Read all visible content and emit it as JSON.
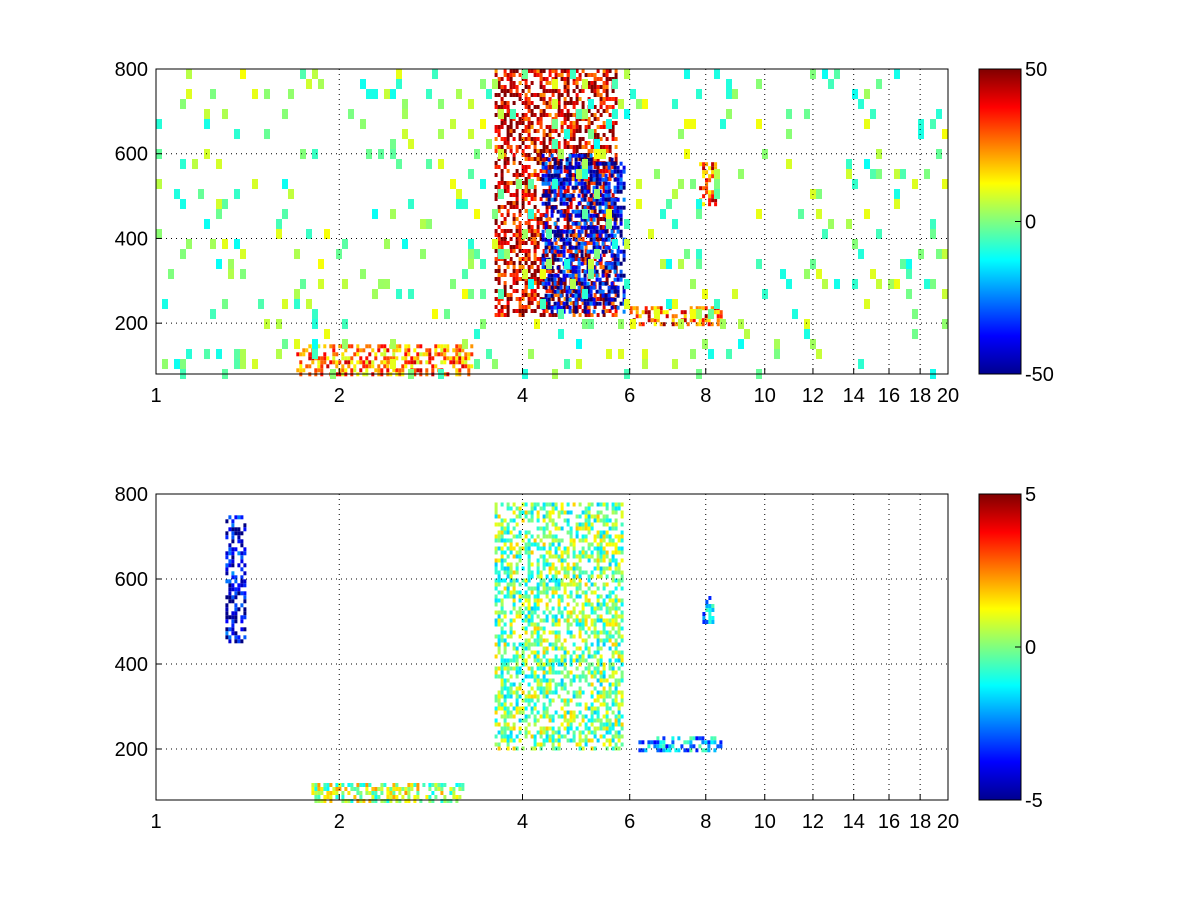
{
  "chart_data": [
    {
      "type": "heatmap",
      "panel": "top",
      "title": "",
      "xlabel": "",
      "ylabel": "",
      "x_scale": "log",
      "xlim": [
        1,
        20
      ],
      "ylim": [
        80,
        800
      ],
      "x_ticks": [
        1,
        2,
        4,
        6,
        8,
        10,
        12,
        14,
        16,
        18,
        20
      ],
      "y_ticks": [
        200,
        400,
        600,
        800
      ],
      "grid": true,
      "colorbar": {
        "min": -50,
        "max": 50,
        "ticks": [
          50,
          0,
          -50
        ],
        "colormap": "jet",
        "placement": "right"
      },
      "features": [
        {
          "description": "strong positive ridge",
          "x_range": [
            3.6,
            5.7
          ],
          "y_range": [
            220,
            800
          ],
          "value": 40
        },
        {
          "description": "strong negative ridge",
          "x_range": [
            4.3,
            5.9
          ],
          "y_range": [
            230,
            600
          ],
          "value": -40
        },
        {
          "description": "positive low band",
          "x_range": [
            1.7,
            3.3
          ],
          "y_range": [
            80,
            150
          ],
          "value": 25
        },
        {
          "description": "positive horizontal streak",
          "x_range": [
            6.0,
            8.5
          ],
          "y_range": [
            200,
            240
          ],
          "value": 30
        },
        {
          "description": "positive blob",
          "x_range": [
            7.8,
            8.3
          ],
          "y_range": [
            480,
            580
          ],
          "value": 30
        },
        {
          "description": "sparse noise",
          "x_range": [
            1,
            20
          ],
          "y_range": [
            80,
            800
          ],
          "value": 0
        }
      ]
    },
    {
      "type": "heatmap",
      "panel": "bottom",
      "title": "",
      "xlabel": "",
      "ylabel": "",
      "x_scale": "log",
      "xlim": [
        1,
        20
      ],
      "ylim": [
        80,
        800
      ],
      "x_ticks": [
        1,
        2,
        4,
        6,
        8,
        10,
        12,
        14,
        16,
        18,
        20
      ],
      "y_ticks": [
        200,
        400,
        600,
        800
      ],
      "grid": true,
      "colorbar": {
        "min": -5,
        "max": 5,
        "ticks": [
          5,
          0,
          -5
        ],
        "colormap": "jet",
        "placement": "right"
      },
      "features": [
        {
          "description": "mixed ridge",
          "x_range": [
            3.6,
            5.8
          ],
          "y_range": [
            200,
            780
          ],
          "value": 0
        },
        {
          "description": "negative streak",
          "x_range": [
            6.2,
            8.5
          ],
          "y_range": [
            200,
            230
          ],
          "value": -2
        },
        {
          "description": "negative blob",
          "x_range": [
            7.9,
            8.2
          ],
          "y_range": [
            500,
            560
          ],
          "value": -2
        },
        {
          "description": "low band",
          "x_range": [
            1.8,
            3.2
          ],
          "y_range": [
            80,
            120
          ],
          "value": 0.5
        },
        {
          "description": "vertical spikes",
          "x_range": [
            1.3,
            1.4
          ],
          "y_range": [
            450,
            750
          ],
          "value": -4
        }
      ]
    }
  ]
}
